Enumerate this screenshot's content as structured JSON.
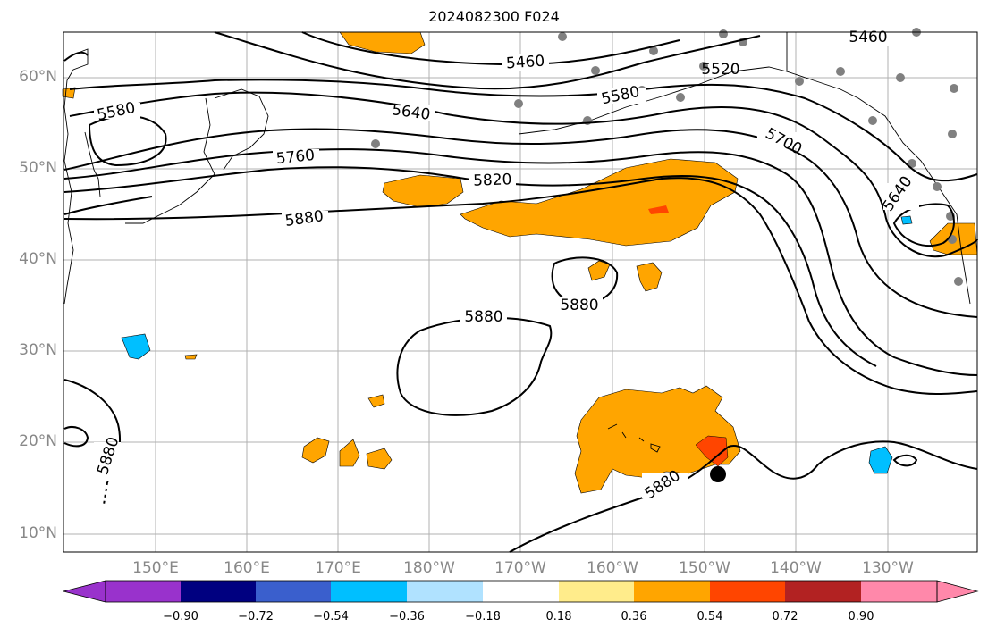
{
  "title": "2024082300 F024",
  "lon_labels": [
    "150°E",
    "160°E",
    "170°E",
    "180°W",
    "170°W",
    "160°W",
    "150°W",
    "140°W",
    "130°W"
  ],
  "lat_labels": [
    "60°N",
    "50°N",
    "40°N",
    "30°N",
    "20°N",
    "10°N"
  ],
  "contours": [
    {
      "label": "5460"
    },
    {
      "label": "5520"
    },
    {
      "label": "5580"
    },
    {
      "label": "5640"
    },
    {
      "label": "5700"
    },
    {
      "label": "5760"
    },
    {
      "label": "5820"
    },
    {
      "label": "5880"
    }
  ],
  "colorbar": {
    "ticks": [
      "−0.90",
      "−0.72",
      "−0.54",
      "−0.36",
      "−0.18",
      "0.18",
      "0.36",
      "0.54",
      "0.72",
      "0.90"
    ],
    "colors": [
      "#9932cc",
      "#000080",
      "#3a5fcd",
      "#00bfff",
      "#b0e2ff",
      "#ffffff",
      "#ffec8b",
      "#ffa500",
      "#ff4500",
      "#b22222",
      "#ff88aa"
    ]
  },
  "colors": {
    "shade_orange": "#ffa500",
    "shade_red": "#ff4500",
    "shade_cyan": "#00bfff",
    "station": "#808080"
  }
}
